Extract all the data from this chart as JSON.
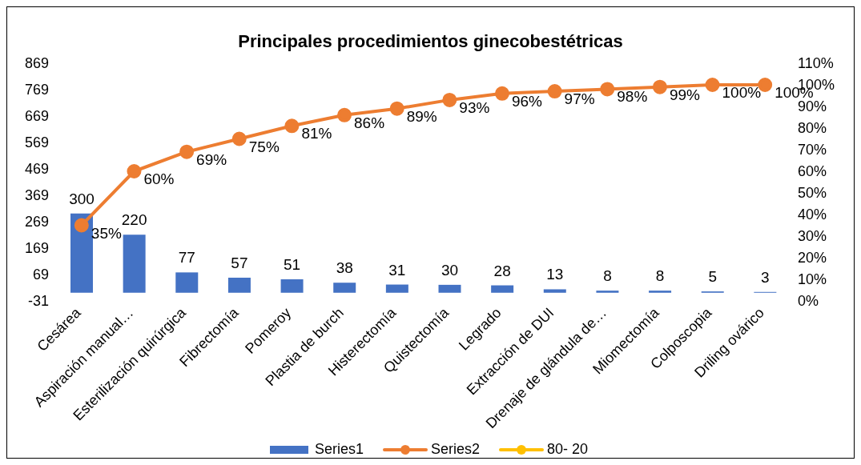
{
  "chart_data": {
    "type": "bar",
    "title": "Principales procedimientos ginecobestétricas",
    "categories": [
      "Cesárea",
      "Aspiración manual…",
      "Esterilización quirúrgica",
      "Fibrectomía",
      "Pomeroy",
      "Plastia de burch",
      "Histerectomía",
      "Quistectomía",
      "Legrado",
      "Extracción de DUI",
      "Drenaje de glándula de…",
      "Miomectomía",
      "Colposcopia",
      "Driling ovárico"
    ],
    "series": [
      {
        "name": "Series1",
        "color": "#4472c4",
        "values": [
          300,
          220,
          77,
          57,
          51,
          38,
          31,
          30,
          28,
          13,
          8,
          8,
          5,
          3
        ],
        "value_labels": [
          "300",
          "220",
          "77",
          "57",
          "51",
          "38",
          "31",
          "30",
          "28",
          "13",
          "8",
          "8",
          "5",
          "3"
        ]
      },
      {
        "name": "Series2",
        "type": "line",
        "axis": "y2",
        "color": "#ed7d31",
        "marker": "circle",
        "values": [
          35,
          60,
          69,
          75,
          81,
          86,
          89,
          93,
          96,
          97,
          98,
          99,
          100,
          100
        ],
        "value_labels": [
          "35%",
          "60%",
          "69%",
          "75%",
          "81%",
          "86%",
          "89%",
          "93%",
          "96%",
          "97%",
          "98%",
          "99%",
          "100%",
          "100%"
        ]
      },
      {
        "name": "80- 20",
        "type": "line",
        "axis": "y2",
        "color": "#ffc000",
        "marker": "circle",
        "values": [
          null,
          null,
          null,
          null,
          null,
          null,
          null,
          null,
          null,
          null,
          null,
          null,
          null,
          null
        ]
      }
    ],
    "ylim": [
      -31,
      869
    ],
    "yticks": [
      -31,
      69,
      169,
      269,
      369,
      469,
      569,
      669,
      769,
      869
    ],
    "y2lim": [
      0,
      110
    ],
    "y2ticks": [
      {
        "value": 0,
        "label": "0%"
      },
      {
        "value": 10,
        "label": "10%"
      },
      {
        "value": 20,
        "label": "20%"
      },
      {
        "value": 30,
        "label": "30%"
      },
      {
        "value": 40,
        "label": "40%"
      },
      {
        "value": 50,
        "label": "50%"
      },
      {
        "value": 60,
        "label": "60%"
      },
      {
        "value": 70,
        "label": "70%"
      },
      {
        "value": 80,
        "label": "80%"
      },
      {
        "value": 90,
        "label": "90%"
      },
      {
        "value": 100,
        "label": "100%"
      },
      {
        "value": 110,
        "label": "110%"
      }
    ],
    "grid": false,
    "legend": "bottom"
  }
}
